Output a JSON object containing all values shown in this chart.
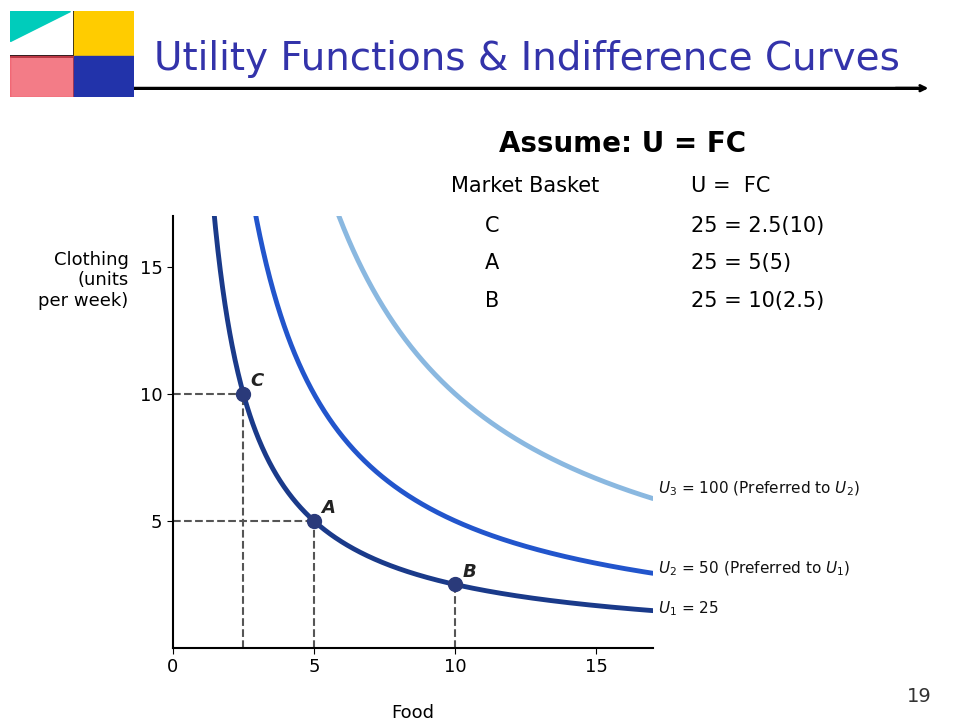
{
  "title": "Utility Functions & Indifference Curves",
  "title_color": "#3333AA",
  "title_fontsize": 28,
  "bg_color": "#FFFFFF",
  "xlabel": "Food\n(units per week)",
  "ylabel": "Clothing\n(units\nper week)",
  "xlim": [
    0,
    17
  ],
  "ylim": [
    0,
    17
  ],
  "xticks": [
    0,
    5,
    10,
    15
  ],
  "yticks": [
    5,
    10,
    15
  ],
  "curve_U1_color": "#1a3a8a",
  "curve_U2_color": "#2255cc",
  "curve_U3_color": "#8ab8e0",
  "curve_U1_k": 25,
  "curve_U2_k": 50,
  "curve_U3_k": 100,
  "point_C": [
    2.5,
    10
  ],
  "point_A": [
    5,
    5
  ],
  "point_B": [
    10,
    2.5
  ],
  "point_color": "#2a3a7a",
  "label_U1": "$U_1$ = 25",
  "label_U2": "$U_2$ = 50 (Preferred to $U_1$)",
  "label_U3": "$U_3$ = 100 (Preferred to $U_2$)",
  "page_number": "19",
  "arrow_color": "#000000",
  "logo_teal": "#00CCBB",
  "logo_yellow": "#FFCC00",
  "logo_red": "#EE4455",
  "logo_blue": "#2233AA"
}
